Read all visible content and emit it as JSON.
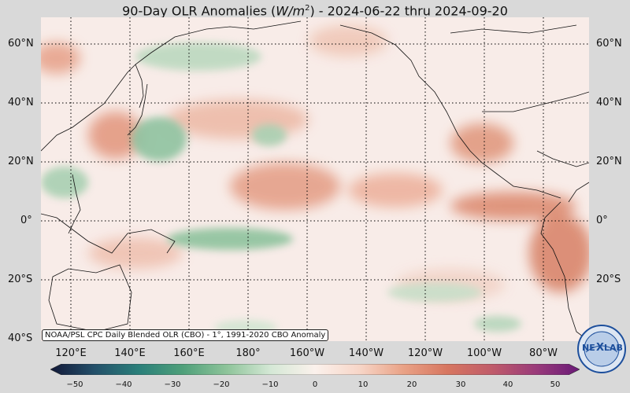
{
  "title": {
    "prefix": "90-Day OLR Anomalies (",
    "unit": "W/m",
    "exponent": "2",
    "suffix": ") - 2024-06-22 thru 2024-09-20"
  },
  "map": {
    "lat_labels_left": [
      "60°N",
      "40°N",
      "20°N",
      "0°",
      "20°S",
      "40°S"
    ],
    "lat_labels_right": [
      "60°N",
      "40°N",
      "20°N",
      "0°",
      "20°S"
    ],
    "lon_labels": [
      "120°E",
      "140°E",
      "160°E",
      "180°",
      "160°W",
      "140°W",
      "120°W",
      "100°W",
      "80°W"
    ],
    "source_note": "NOAA/PSL CPC Daily Blended OLR (CBO) - 1°, 1991-2020 CBO Anomaly"
  },
  "colorbar": {
    "ticks": [
      "−50",
      "−40",
      "−30",
      "−20",
      "−10",
      "0",
      "10",
      "20",
      "30",
      "40",
      "50"
    ],
    "colors": [
      "#121838",
      "#24506a",
      "#2a7f7a",
      "#4fa07a",
      "#8ec49a",
      "#d5e8d6",
      "#fbf1ec",
      "#f7d6c8",
      "#e9a286",
      "#d77660",
      "#c05c6a",
      "#9a3b7a",
      "#6a1a78"
    ]
  },
  "logo": {
    "text_left": "NE",
    "text_right": "LAB"
  }
}
